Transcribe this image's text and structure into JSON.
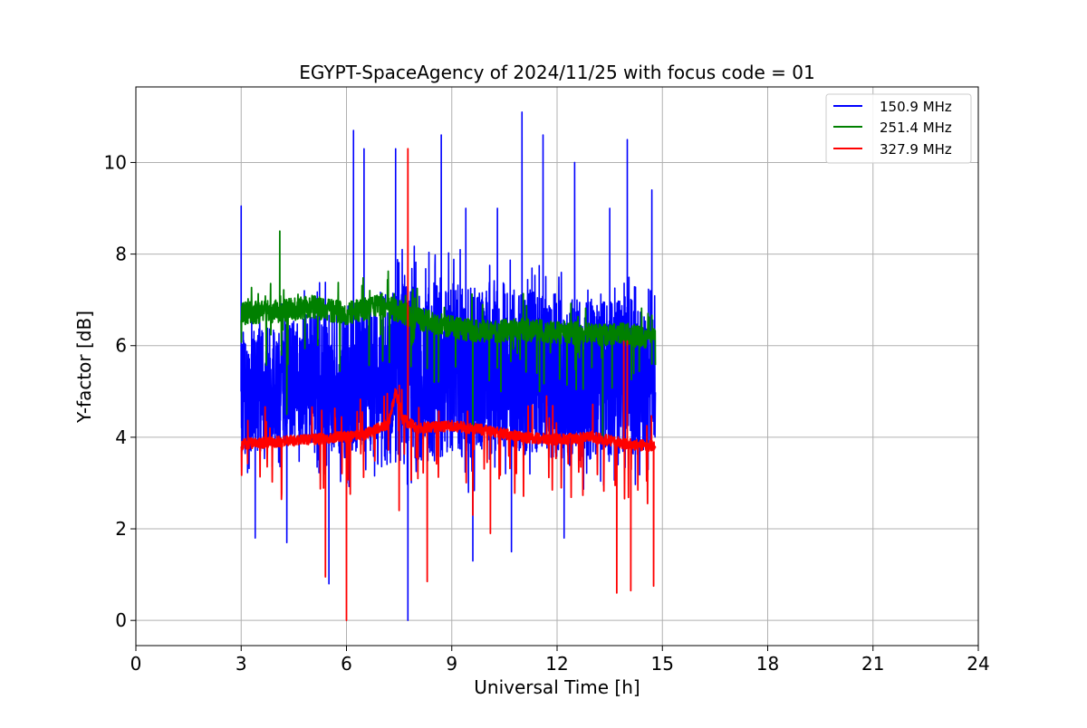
{
  "chart_data": {
    "type": "line",
    "title": "EGYPT-SpaceAgency of 2024/11/25 with focus code = 01",
    "xlabel": "Universal Time [h]",
    "ylabel": "Y-factor [dB]",
    "xlim": [
      0,
      24
    ],
    "ylim": [
      -0.55,
      11.65
    ],
    "xticks": [
      0,
      3,
      6,
      9,
      12,
      15,
      18,
      21,
      24
    ],
    "xtick_labels": [
      "0",
      "3",
      "6",
      "9",
      "12",
      "15",
      "18",
      "21",
      "24"
    ],
    "yticks": [
      0,
      2,
      4,
      6,
      8,
      10
    ],
    "ytick_labels": [
      "0",
      "2",
      "4",
      "6",
      "8",
      "10"
    ],
    "grid": true,
    "legend_position": "top-right",
    "series": [
      {
        "name": "150.9 MHz",
        "color": "#0000ff",
        "x_range": [
          3.0,
          14.8
        ],
        "base_level": 5.0,
        "envelope_low": [
          3.0,
          3.2,
          3.3,
          2.8,
          2.5,
          2.6,
          2.7,
          2.8,
          2.9,
          2.8,
          2.7,
          2.9,
          3.0
        ],
        "envelope_high": [
          7.0,
          7.0,
          7.3,
          7.6,
          8.0,
          8.3,
          8.2,
          8.0,
          8.0,
          7.9,
          7.8,
          7.7,
          7.2
        ],
        "spikes": [
          [
            3.0,
            9.05
          ],
          [
            6.2,
            10.7
          ],
          [
            6.5,
            10.3
          ],
          [
            7.4,
            10.3
          ],
          [
            8.7,
            10.6
          ],
          [
            11.0,
            11.1
          ],
          [
            11.6,
            10.6
          ],
          [
            14.0,
            10.5
          ],
          [
            14.7,
            9.4
          ],
          [
            4.8,
            7.2
          ],
          [
            9.4,
            9.0
          ],
          [
            10.3,
            9.0
          ],
          [
            12.5,
            10.0
          ],
          [
            13.5,
            9.0
          ]
        ],
        "dips": [
          [
            3.4,
            1.8
          ],
          [
            5.5,
            0.8
          ],
          [
            7.75,
            0.0
          ],
          [
            9.6,
            1.3
          ],
          [
            10.7,
            1.5
          ],
          [
            12.2,
            1.8
          ],
          [
            4.3,
            1.7
          ]
        ]
      },
      {
        "name": "251.4 MHz",
        "color": "#008000",
        "x_range": [
          3.0,
          14.8
        ],
        "base_level": 6.6,
        "profile": [
          [
            3.0,
            6.7
          ],
          [
            4.0,
            6.75
          ],
          [
            5.0,
            6.85
          ],
          [
            6.0,
            6.7
          ],
          [
            7.0,
            6.9
          ],
          [
            8.0,
            6.6
          ],
          [
            9.0,
            6.4
          ],
          [
            10.0,
            6.3
          ],
          [
            11.0,
            6.35
          ],
          [
            12.0,
            6.3
          ],
          [
            13.0,
            6.25
          ],
          [
            14.0,
            6.25
          ],
          [
            14.8,
            6.15
          ]
        ],
        "noise": 0.25,
        "spikes": [
          [
            4.1,
            8.5
          ]
        ],
        "dips": [
          [
            4.3,
            4.5
          ],
          [
            9.6,
            2.9
          ],
          [
            10.4,
            5.0
          ],
          [
            11.5,
            5.0
          ],
          [
            13.3,
            4.0
          ],
          [
            14.7,
            5.6
          ],
          [
            8.3,
            5.5
          ]
        ]
      },
      {
        "name": "327.9 MHz",
        "color": "#ff0000",
        "x_range": [
          3.0,
          14.8
        ],
        "base_level": 4.0,
        "profile": [
          [
            3.0,
            3.85
          ],
          [
            5.0,
            3.95
          ],
          [
            6.5,
            4.05
          ],
          [
            7.2,
            4.3
          ],
          [
            7.4,
            5.0
          ],
          [
            7.6,
            4.4
          ],
          [
            8.0,
            4.2
          ],
          [
            9.0,
            4.25
          ],
          [
            10.0,
            4.15
          ],
          [
            11.0,
            4.0
          ],
          [
            12.0,
            3.95
          ],
          [
            13.0,
            4.0
          ],
          [
            14.0,
            3.85
          ],
          [
            14.8,
            3.8
          ]
        ],
        "noise": 0.12,
        "spikes": [
          [
            7.75,
            10.3
          ],
          [
            13.9,
            6.1
          ],
          [
            14.0,
            6.1
          ],
          [
            11.7,
            4.9
          ]
        ],
        "dips": [
          [
            5.4,
            0.95
          ],
          [
            6.0,
            0.0
          ],
          [
            8.3,
            0.85
          ],
          [
            9.6,
            2.3
          ],
          [
            10.1,
            1.9
          ],
          [
            13.7,
            0.6
          ],
          [
            14.1,
            0.65
          ],
          [
            14.75,
            0.75
          ],
          [
            7.5,
            2.4
          ]
        ]
      }
    ]
  }
}
